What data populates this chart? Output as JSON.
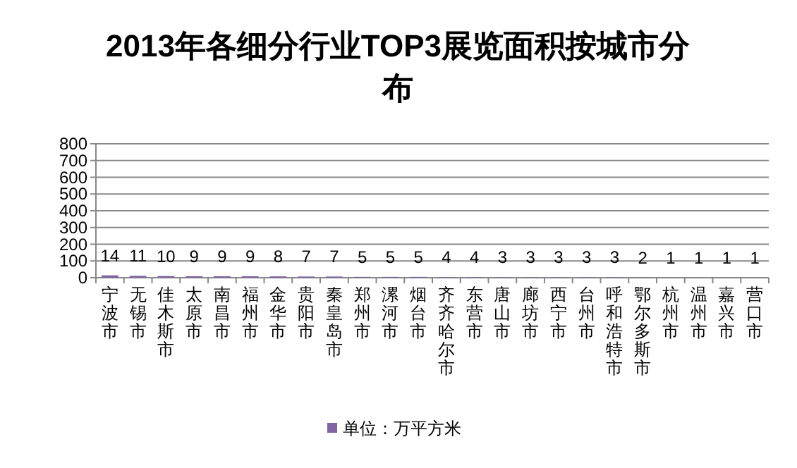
{
  "chart_data": {
    "type": "bar",
    "title": "2013年各细分行业TOP3展览面积按城市分布",
    "categories": [
      "宁波市",
      "无锡市",
      "佳木斯市",
      "太原市",
      "南昌市",
      "福州市",
      "金华市",
      "贵阳市",
      "秦皇岛市",
      "郑州市",
      "漯河市",
      "烟台市",
      "齐齐哈尔市",
      "东营市",
      "唐山市",
      "廊坊市",
      "西宁市",
      "台州市",
      "呼和浩特市",
      "鄂尔多斯市",
      "杭州市",
      "温州市",
      "嘉兴市",
      "营口市"
    ],
    "series": [
      {
        "name": "单位：万平方米",
        "color": "#8064a2",
        "values": [
          14,
          11,
          10,
          9,
          9,
          9,
          8,
          7,
          7,
          5,
          5,
          5,
          4,
          4,
          3,
          3,
          3,
          3,
          3,
          2,
          1,
          1,
          1,
          1
        ]
      }
    ],
    "ylim": [
      0,
      800
    ],
    "yticks": [
      0,
      100,
      200,
      300,
      400,
      500,
      600,
      700,
      800
    ],
    "grid": "y",
    "legend": "bottom",
    "data_labels": true
  }
}
